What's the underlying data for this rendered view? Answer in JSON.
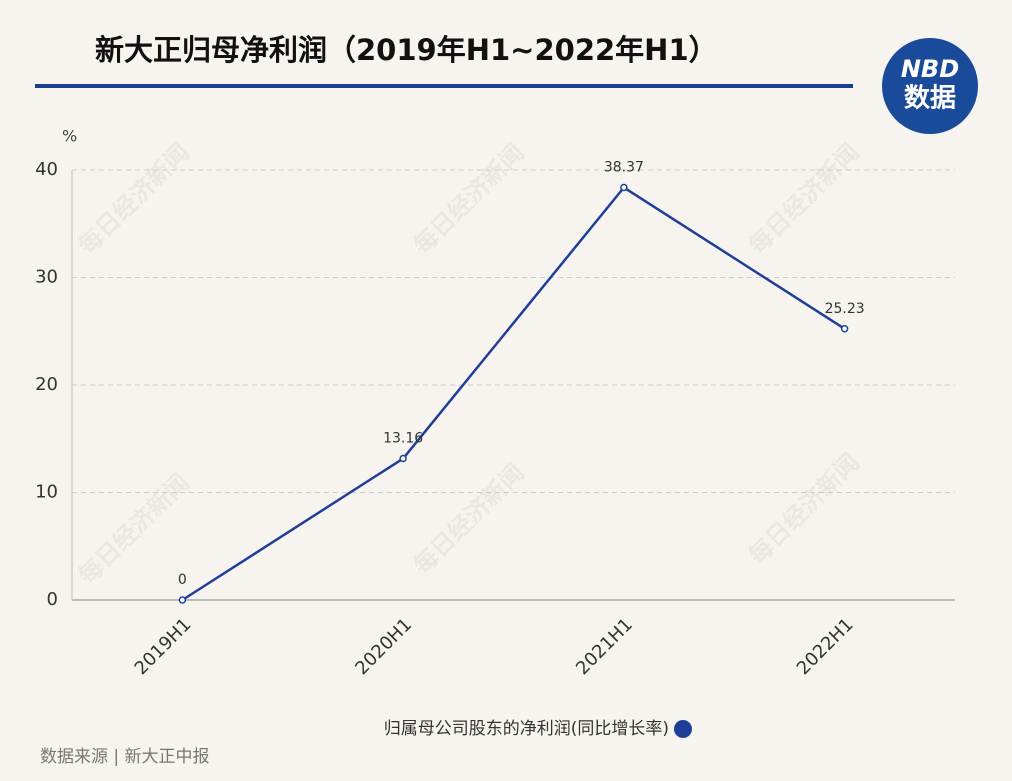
{
  "chart_data": {
    "type": "line",
    "title": "新大正归母净利润（2019年H1~2022年H1）",
    "y_unit": "%",
    "categories": [
      "2019H1",
      "2020H1",
      "2021H1",
      "2022H1"
    ],
    "series": [
      {
        "name": "归属母公司股东的净利润(同比增长率)",
        "color": "#1f3e99",
        "values": [
          0,
          13.16,
          38.37,
          25.23
        ]
      }
    ],
    "ylim": [
      0,
      40
    ],
    "yticks": [
      0,
      10,
      20,
      30,
      40
    ],
    "grid": true,
    "source": "数据来源 | 新大正中报",
    "logo": {
      "brand": "NBD",
      "label": "数据"
    },
    "watermark": "每日经济新闻"
  }
}
